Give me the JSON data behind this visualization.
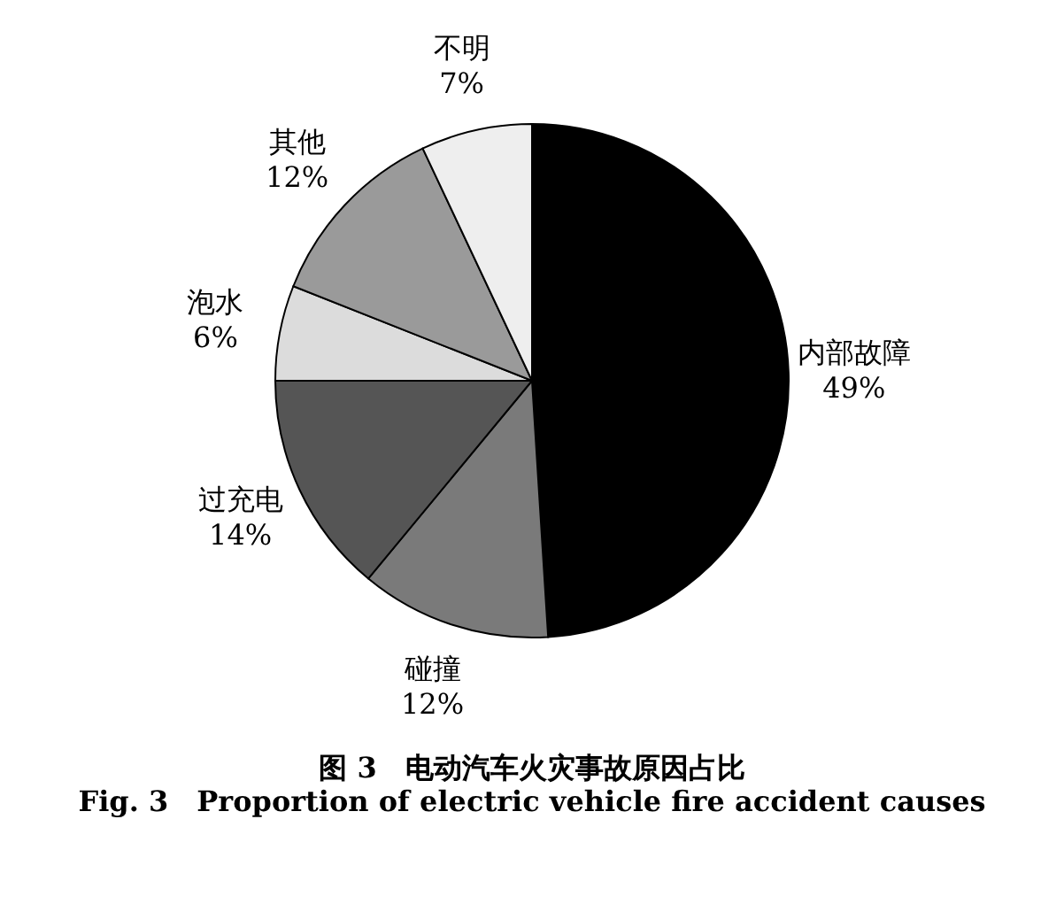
{
  "chart_data": {
    "type": "pie",
    "title": "图 3　电动汽车火灾事故原因占比",
    "subtitle": "Fig. 3　Proportion of electric vehicle fire accident causes",
    "categories": [
      "内部故障",
      "碰撞",
      "过充电",
      "泡水",
      "其他",
      "不明"
    ],
    "values": [
      49,
      12,
      14,
      6,
      12,
      7
    ],
    "value_labels": [
      "49%",
      "12%",
      "14%",
      "6%",
      "12%",
      "7%"
    ],
    "colors": [
      "#000000",
      "#7a7a7a",
      "#555555",
      "#dcdcdc",
      "#9a9a9a",
      "#eeeeee"
    ]
  }
}
